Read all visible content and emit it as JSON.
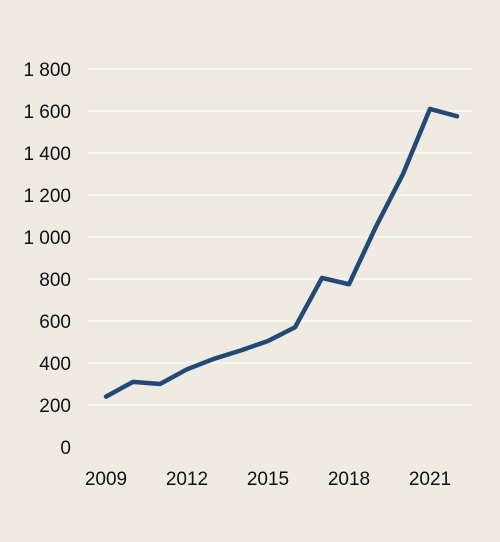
{
  "chart_data": {
    "type": "line",
    "x": [
      2009,
      2010,
      2011,
      2012,
      2013,
      2014,
      2015,
      2016,
      2017,
      2018,
      2019,
      2020,
      2021,
      2022
    ],
    "series": [
      {
        "values": [
          240,
          310,
          300,
          370,
          420,
          460,
          505,
          570,
          805,
          775,
          1050,
          1300,
          1610,
          1575
        ],
        "color": "#234a77"
      }
    ],
    "x_tick_labels": [
      "2009",
      "2012",
      "2015",
      "2018",
      "2021"
    ],
    "x_tick_values": [
      2009,
      2012,
      2015,
      2018,
      2021
    ],
    "y_tick_labels": [
      "0",
      "200",
      "400",
      "600",
      "800",
      "1 000",
      "1 200",
      "1 400",
      "1 600",
      "1 800"
    ],
    "y_tick_values": [
      0,
      200,
      400,
      600,
      800,
      1000,
      1200,
      1400,
      1600,
      1800
    ],
    "ylim": [
      0,
      1800
    ],
    "xlim": [
      2009,
      2022
    ],
    "grid": "horizontal",
    "background_color": "#efebe2",
    "grid_color": "#ffffff",
    "title": "",
    "xlabel": "",
    "ylabel": ""
  }
}
